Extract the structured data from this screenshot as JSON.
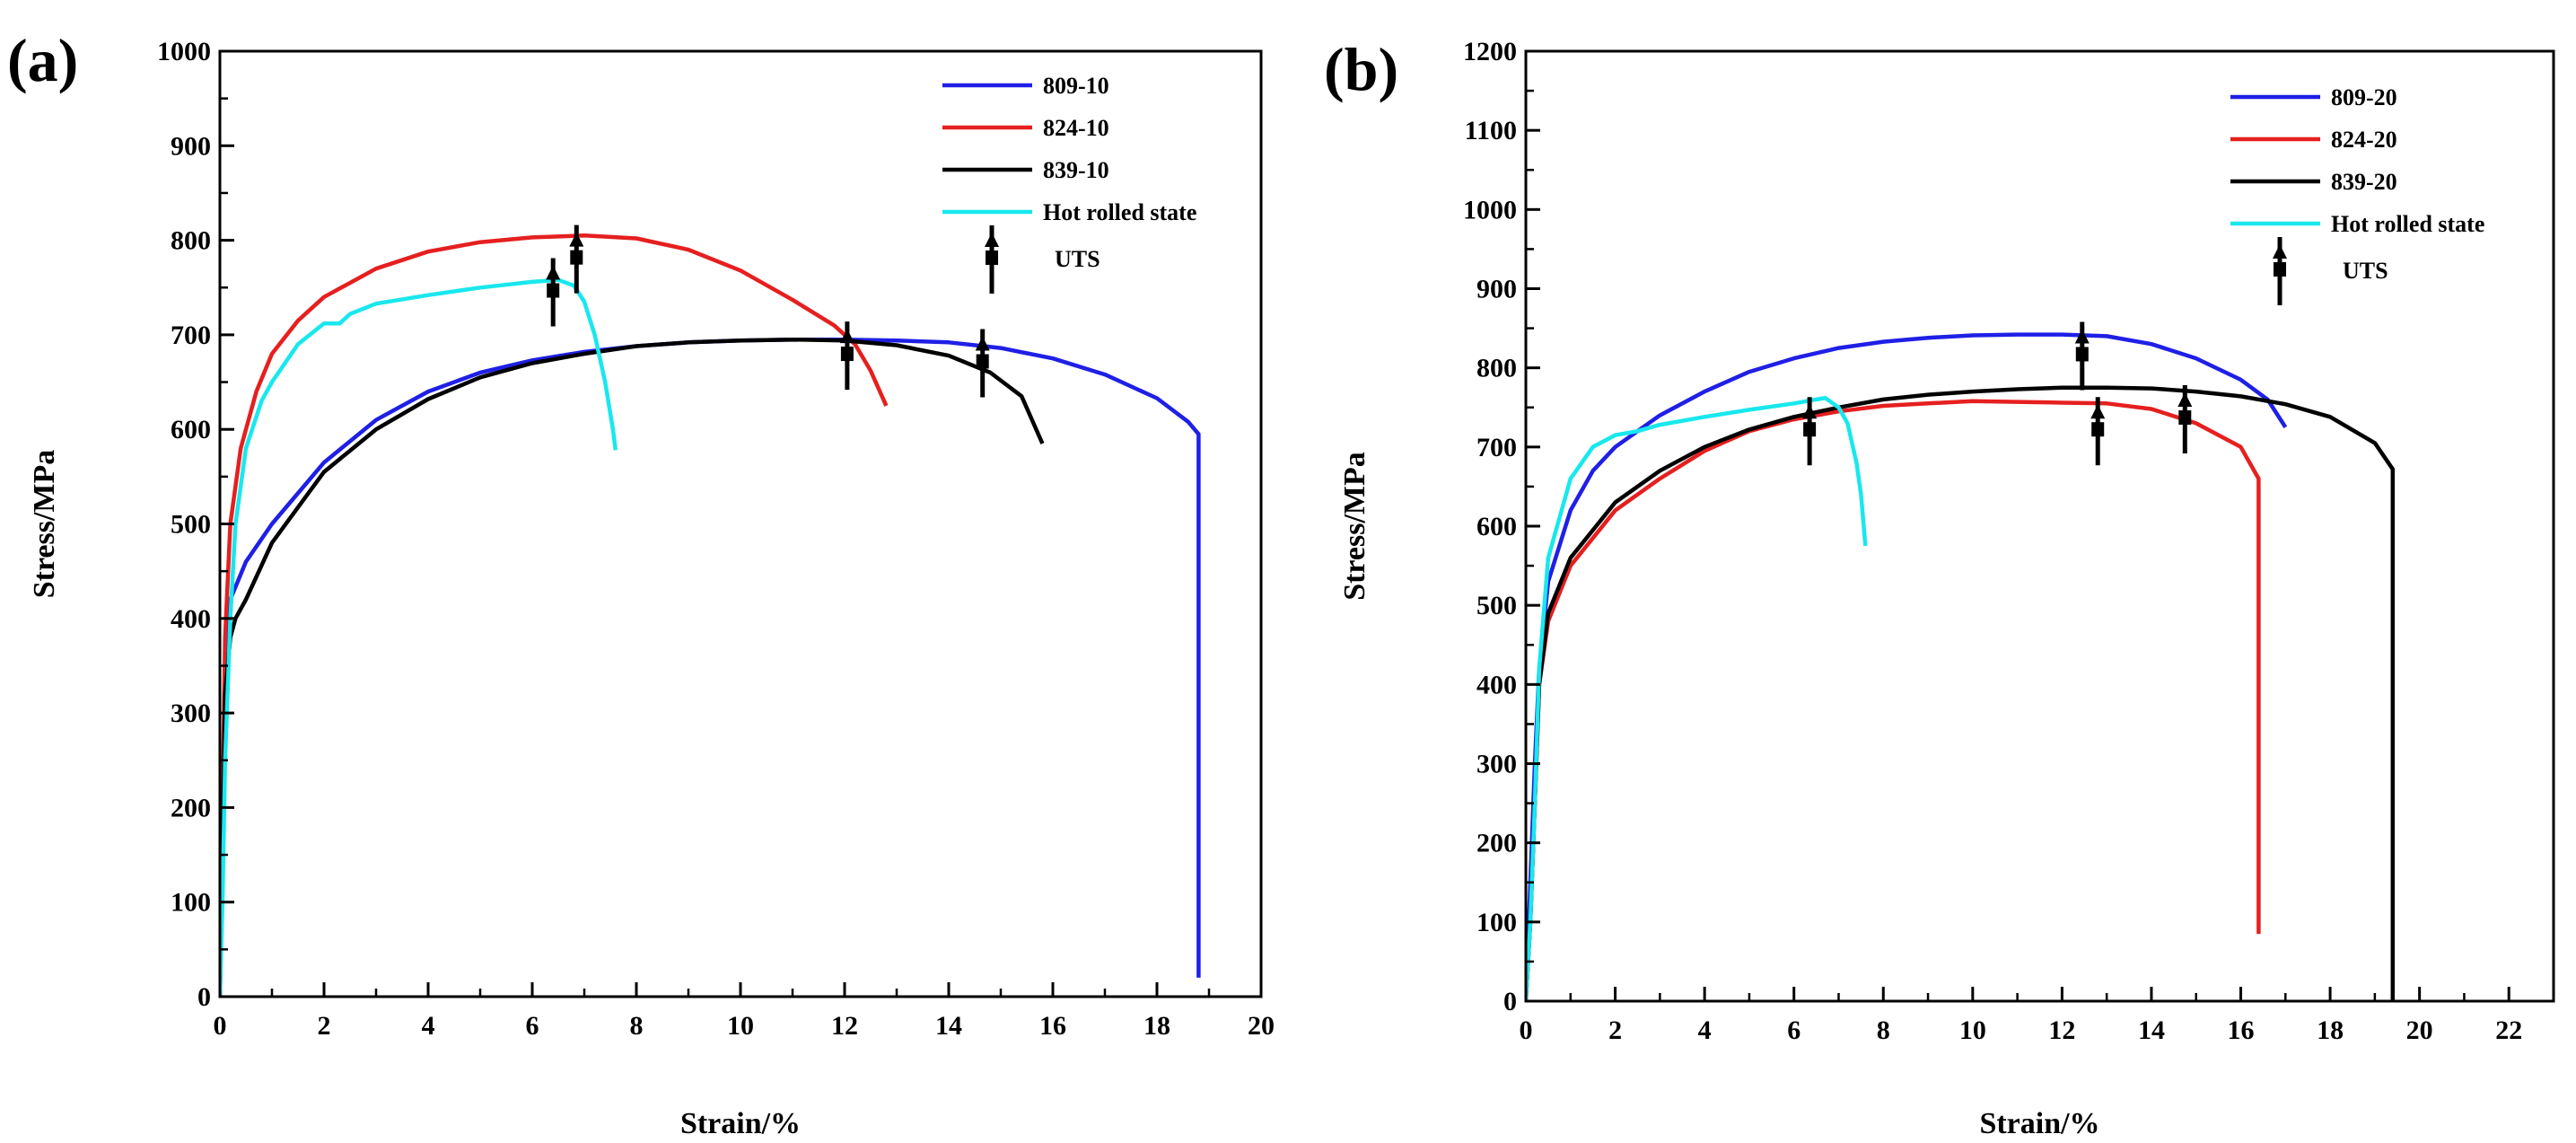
{
  "figure": {
    "legend_marker_label": "UTS",
    "colors": {
      "blue": "#1f1fe6",
      "red": "#e61f1f",
      "black": "#000000",
      "cyan": "#18e8ee"
    }
  },
  "chart_data": [
    {
      "panel_label": "(a)",
      "type": "line",
      "xlabel": "Strain/%",
      "ylabel": "Stress/MPa",
      "xlim": [
        0,
        20
      ],
      "ylim": [
        0,
        1000
      ],
      "xticks": [
        "0",
        "2",
        "4",
        "6",
        "8",
        "10",
        "12",
        "14",
        "16",
        "18",
        "20"
      ],
      "yticks": [
        "0",
        "100",
        "200",
        "300",
        "400",
        "500",
        "600",
        "700",
        "800",
        "900",
        "1000"
      ],
      "legend": [
        "809-10",
        "824-10",
        "839-10",
        "Hot rolled state",
        "UTS"
      ],
      "series": [
        {
          "name": "809-10",
          "color": "blue",
          "points": [
            [
              0,
              0
            ],
            [
              0.05,
              150
            ],
            [
              0.1,
              330
            ],
            [
              0.2,
              420
            ],
            [
              0.5,
              460
            ],
            [
              1,
              500
            ],
            [
              2,
              565
            ],
            [
              3,
              610
            ],
            [
              4,
              640
            ],
            [
              5,
              660
            ],
            [
              6,
              673
            ],
            [
              7,
              682
            ],
            [
              8,
              688
            ],
            [
              9,
              692
            ],
            [
              10,
              694
            ],
            [
              11,
              695
            ],
            [
              12,
              695
            ],
            [
              13,
              694
            ],
            [
              14,
              692
            ],
            [
              15,
              686
            ],
            [
              16,
              675
            ],
            [
              17,
              658
            ],
            [
              18,
              633
            ],
            [
              18.6,
              608
            ],
            [
              18.8,
              595
            ],
            [
              18.8,
              20
            ]
          ]
        },
        {
          "name": "824-10",
          "color": "red",
          "points": [
            [
              0,
              0
            ],
            [
              0.05,
              200
            ],
            [
              0.1,
              380
            ],
            [
              0.2,
              500
            ],
            [
              0.4,
              580
            ],
            [
              0.7,
              640
            ],
            [
              1,
              680
            ],
            [
              1.5,
              715
            ],
            [
              2,
              740
            ],
            [
              3,
              770
            ],
            [
              4,
              788
            ],
            [
              5,
              798
            ],
            [
              6,
              803
            ],
            [
              7,
              805
            ],
            [
              8,
              802
            ],
            [
              9,
              790
            ],
            [
              10,
              768
            ],
            [
              11,
              737
            ],
            [
              11.8,
              710
            ],
            [
              12.2,
              690
            ],
            [
              12.5,
              662
            ],
            [
              12.8,
              625
            ]
          ]
        },
        {
          "name": "839-10",
          "color": "black",
          "points": [
            [
              0,
              0
            ],
            [
              0.05,
              150
            ],
            [
              0.1,
              320
            ],
            [
              0.2,
              380
            ],
            [
              0.3,
              400
            ],
            [
              0.5,
              420
            ],
            [
              1,
              480
            ],
            [
              2,
              555
            ],
            [
              3,
              600
            ],
            [
              4,
              632
            ],
            [
              5,
              655
            ],
            [
              6,
              670
            ],
            [
              7,
              680
            ],
            [
              8,
              688
            ],
            [
              9,
              692
            ],
            [
              10,
              694
            ],
            [
              11,
              695
            ],
            [
              12,
              694
            ],
            [
              13,
              689
            ],
            [
              14,
              678
            ],
            [
              14.8,
              660
            ],
            [
              15.4,
              635
            ],
            [
              15.8,
              585
            ]
          ]
        },
        {
          "name": "Hot rolled state",
          "color": "cyan",
          "points": [
            [
              0,
              0
            ],
            [
              0.05,
              100
            ],
            [
              0.1,
              250
            ],
            [
              0.2,
              400
            ],
            [
              0.3,
              500
            ],
            [
              0.5,
              580
            ],
            [
              0.8,
              630
            ],
            [
              1,
              650
            ],
            [
              1.5,
              690
            ],
            [
              2,
              712
            ],
            [
              2.3,
              712
            ],
            [
              2.5,
              722
            ],
            [
              3,
              733
            ],
            [
              4,
              742
            ],
            [
              5,
              750
            ],
            [
              6,
              756
            ],
            [
              6.5,
              758
            ],
            [
              6.8,
              752
            ],
            [
              7,
              735
            ],
            [
              7.2,
              700
            ],
            [
              7.4,
              650
            ],
            [
              7.55,
              600
            ],
            [
              7.6,
              578
            ]
          ]
        }
      ],
      "uts_markers": [
        [
          6.4,
          745
        ],
        [
          6.85,
          780
        ],
        [
          12.05,
          678
        ],
        [
          14.65,
          670
        ]
      ]
    },
    {
      "panel_label": "(b)",
      "type": "line",
      "xlabel": "Strain/%",
      "ylabel": "Stress/MPa",
      "xlim": [
        0,
        23
      ],
      "ylim": [
        0,
        1200
      ],
      "xticks": [
        "0",
        "2",
        "4",
        "6",
        "8",
        "10",
        "12",
        "14",
        "16",
        "18",
        "20",
        "22"
      ],
      "yticks": [
        "0",
        "100",
        "200",
        "300",
        "400",
        "500",
        "600",
        "700",
        "800",
        "900",
        "1000",
        "1100",
        "1200"
      ],
      "legend": [
        "809-20",
        "824-20",
        "839-20",
        "Hot rolled state",
        "UTS"
      ],
      "series": [
        {
          "name": "809-20",
          "color": "blue",
          "points": [
            [
              0,
              0
            ],
            [
              0.1,
              150
            ],
            [
              0.2,
              300
            ],
            [
              0.3,
              420
            ],
            [
              0.5,
              530
            ],
            [
              1,
              620
            ],
            [
              1.5,
              670
            ],
            [
              2,
              700
            ],
            [
              3,
              740
            ],
            [
              4,
              770
            ],
            [
              5,
              795
            ],
            [
              6,
              812
            ],
            [
              7,
              825
            ],
            [
              8,
              833
            ],
            [
              9,
              838
            ],
            [
              10,
              841
            ],
            [
              11,
              842
            ],
            [
              12,
              842
            ],
            [
              13,
              840
            ],
            [
              14,
              830
            ],
            [
              15,
              812
            ],
            [
              16,
              785
            ],
            [
              16.6,
              760
            ],
            [
              17,
              725
            ]
          ]
        },
        {
          "name": "824-20",
          "color": "red",
          "points": [
            [
              0,
              0
            ],
            [
              0.1,
              100
            ],
            [
              0.2,
              250
            ],
            [
              0.3,
              400
            ],
            [
              0.5,
              480
            ],
            [
              1,
              550
            ],
            [
              2,
              620
            ],
            [
              3,
              660
            ],
            [
              4,
              695
            ],
            [
              5,
              720
            ],
            [
              6,
              735
            ],
            [
              7,
              745
            ],
            [
              8,
              752
            ],
            [
              9,
              755
            ],
            [
              10,
              758
            ],
            [
              11,
              757
            ],
            [
              12,
              756
            ],
            [
              13,
              755
            ],
            [
              14,
              748
            ],
            [
              15,
              730
            ],
            [
              16,
              700
            ],
            [
              16.4,
              660
            ],
            [
              16.4,
              85
            ]
          ]
        },
        {
          "name": "839-20",
          "color": "black",
          "points": [
            [
              0,
              0
            ],
            [
              0.1,
              100
            ],
            [
              0.2,
              250
            ],
            [
              0.3,
              400
            ],
            [
              0.5,
              490
            ],
            [
              1,
              560
            ],
            [
              2,
              630
            ],
            [
              3,
              670
            ],
            [
              4,
              700
            ],
            [
              5,
              722
            ],
            [
              6,
              738
            ],
            [
              7,
              750
            ],
            [
              8,
              760
            ],
            [
              9,
              766
            ],
            [
              10,
              770
            ],
            [
              11,
              773
            ],
            [
              12,
              775
            ],
            [
              13,
              775
            ],
            [
              14,
              774
            ],
            [
              15,
              770
            ],
            [
              16,
              764
            ],
            [
              17,
              754
            ],
            [
              18,
              738
            ],
            [
              19,
              705
            ],
            [
              19.4,
              672
            ],
            [
              19.4,
              0
            ]
          ]
        },
        {
          "name": "Hot rolled state",
          "color": "cyan",
          "points": [
            [
              0,
              0
            ],
            [
              0.1,
              100
            ],
            [
              0.2,
              250
            ],
            [
              0.3,
              420
            ],
            [
              0.5,
              560
            ],
            [
              1,
              660
            ],
            [
              1.5,
              700
            ],
            [
              2,
              715
            ],
            [
              2.5,
              720
            ],
            [
              3,
              728
            ],
            [
              4,
              738
            ],
            [
              5,
              747
            ],
            [
              6,
              755
            ],
            [
              6.5,
              760
            ],
            [
              6.7,
              762
            ],
            [
              7,
              750
            ],
            [
              7.2,
              730
            ],
            [
              7.4,
              680
            ],
            [
              7.5,
              640
            ],
            [
              7.6,
              575
            ]
          ]
        }
      ],
      "uts_markers": [
        [
          6.35,
          720
        ],
        [
          12.45,
          815
        ],
        [
          12.8,
          720
        ],
        [
          14.75,
          735
        ]
      ]
    }
  ]
}
